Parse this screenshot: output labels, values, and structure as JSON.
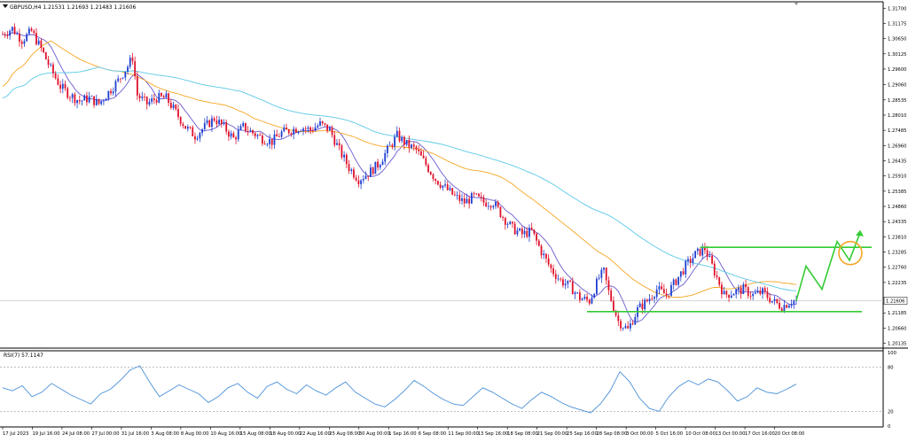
{
  "symbol_header": "GBPUSD,H4  1.21531 1.21693 1.21483 1.21606",
  "rsi_header": "RSI(7) 57.1147",
  "last_price_label": "1.21606",
  "colors": {
    "bull": "#1f3fd0",
    "bear": "#e0102a",
    "ma_fast": "#6a5acd",
    "ma_mid": "#f5a623",
    "ma_slow": "#5bc8e8",
    "rsi": "#4a90d9",
    "levels": "#33cc33",
    "projection": "#33cc33",
    "circle": "#f5a623"
  },
  "chart_data": [
    {
      "type": "candlestick",
      "title": "GBPUSD,H4",
      "ylim": [
        1.2,
        1.318
      ],
      "price_ticks": [
        "1.31700",
        "1.31175",
        "1.30650",
        "1.30125",
        "1.29600",
        "1.29060",
        "1.28535",
        "1.28010",
        "1.27485",
        "1.26960",
        "1.26435",
        "1.25910",
        "1.25385",
        "1.24860",
        "1.24335",
        "1.23810",
        "1.23285",
        "1.22760",
        "1.22235",
        "1.21606",
        "1.21185",
        "1.20660",
        "1.20135"
      ],
      "time_labels": [
        "17 Jul 2023",
        "19 Jul 16:00",
        "24 Jul 08:00",
        "27 Jul 00:00",
        "31 Jul 16:00",
        "3 Aug 08:00",
        "8 Aug 00:00",
        "10 Aug 16:00",
        "15 Aug 08:00",
        "18 Aug 00:00",
        "22 Aug 16:00",
        "25 Aug 08:00",
        "30 Aug 00:00",
        "1 Sep 16:00",
        "6 Sep 08:00",
        "11 Sep 00:00",
        "13 Sep 16:00",
        "18 Sep 08:00",
        "21 Sep 00:00",
        "25 Sep 16:00",
        "28 Sep 08:00",
        "3 Oct 00:00",
        "5 Oct 16:00",
        "10 Oct 08:00",
        "13 Oct 00:00",
        "17 Oct 16:00",
        "20 Oct 08:00"
      ],
      "close_path": [
        [
          0,
          1.308
        ],
        [
          4,
          1.31
        ],
        [
          8,
          1.306
        ],
        [
          12,
          1.309
        ],
        [
          16,
          1.303
        ],
        [
          20,
          1.296
        ],
        [
          24,
          1.29
        ],
        [
          28,
          1.287
        ],
        [
          32,
          1.285
        ],
        [
          36,
          1.286
        ],
        [
          40,
          1.284
        ],
        [
          44,
          1.288
        ],
        [
          48,
          1.292
        ],
        [
          52,
          1.297
        ],
        [
          54,
          1.3
        ],
        [
          56,
          1.287
        ],
        [
          60,
          1.284
        ],
        [
          64,
          1.286
        ],
        [
          68,
          1.286
        ],
        [
          72,
          1.281
        ],
        [
          76,
          1.276
        ],
        [
          80,
          1.273
        ],
        [
          84,
          1.276
        ],
        [
          88,
          1.279
        ],
        [
          92,
          1.276
        ],
        [
          96,
          1.272
        ],
        [
          100,
          1.276
        ],
        [
          104,
          1.274
        ],
        [
          108,
          1.272
        ],
        [
          112,
          1.271
        ],
        [
          116,
          1.274
        ],
        [
          120,
          1.275
        ],
        [
          124,
          1.276
        ],
        [
          128,
          1.275
        ],
        [
          132,
          1.277
        ],
        [
          136,
          1.275
        ],
        [
          140,
          1.268
        ],
        [
          144,
          1.262
        ],
        [
          148,
          1.258
        ],
        [
          152,
          1.26
        ],
        [
          156,
          1.263
        ],
        [
          160,
          1.268
        ],
        [
          164,
          1.273
        ],
        [
          168,
          1.27
        ],
        [
          172,
          1.268
        ],
        [
          176,
          1.263
        ],
        [
          180,
          1.258
        ],
        [
          184,
          1.255
        ],
        [
          188,
          1.252
        ],
        [
          192,
          1.25
        ],
        [
          196,
          1.252
        ],
        [
          200,
          1.25
        ],
        [
          204,
          1.25
        ],
        [
          208,
          1.245
        ],
        [
          212,
          1.241
        ],
        [
          216,
          1.239
        ],
        [
          220,
          1.24
        ],
        [
          224,
          1.233
        ],
        [
          228,
          1.227
        ],
        [
          232,
          1.223
        ],
        [
          236,
          1.221
        ],
        [
          240,
          1.217
        ],
        [
          244,
          1.216
        ],
        [
          248,
          1.224
        ],
        [
          250,
          1.226
        ],
        [
          252,
          1.219
        ],
        [
          256,
          1.209
        ],
        [
          260,
          1.206
        ],
        [
          264,
          1.213
        ],
        [
          268,
          1.216
        ],
        [
          272,
          1.22
        ],
        [
          276,
          1.218
        ],
        [
          280,
          1.223
        ],
        [
          284,
          1.228
        ],
        [
          288,
          1.232
        ],
        [
          292,
          1.234
        ],
        [
          296,
          1.226
        ],
        [
          300,
          1.218
        ],
        [
          304,
          1.219
        ],
        [
          308,
          1.22
        ],
        [
          312,
          1.218
        ],
        [
          316,
          1.219
        ],
        [
          320,
          1.216
        ],
        [
          324,
          1.214
        ],
        [
          328,
          1.216
        ],
        [
          330,
          1.2161
        ]
      ],
      "support_level": 1.2123,
      "resistance_level": 1.2345,
      "projection_path": [
        [
          1.2161
        ],
        [
          1.228
        ],
        [
          1.22
        ],
        [
          1.2365
        ],
        [
          1.23
        ],
        [
          1.2395
        ]
      ]
    },
    {
      "type": "line",
      "title": "RSI(7)",
      "ylim": [
        0,
        100
      ],
      "ticks": [
        "100",
        "80",
        "20",
        "0"
      ],
      "levels": [
        80,
        20
      ],
      "values": [
        52,
        48,
        55,
        40,
        46,
        58,
        50,
        42,
        36,
        30,
        44,
        50,
        62,
        76,
        82,
        60,
        40,
        48,
        56,
        50,
        44,
        32,
        40,
        52,
        58,
        46,
        38,
        54,
        60,
        50,
        44,
        56,
        48,
        42,
        52,
        60,
        46,
        38,
        30,
        26,
        36,
        48,
        62,
        54,
        44,
        36,
        30,
        28,
        40,
        52,
        46,
        38,
        30,
        24,
        36,
        46,
        40,
        32,
        26,
        22,
        18,
        30,
        48,
        74,
        60,
        38,
        24,
        20,
        40,
        54,
        62,
        56,
        64,
        60,
        48,
        34,
        40,
        52,
        46,
        44,
        50,
        57
      ]
    }
  ]
}
